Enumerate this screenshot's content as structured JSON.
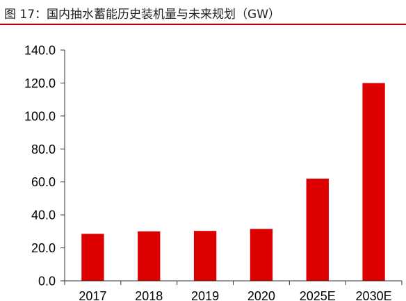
{
  "figure_title": "图 17：国内抽水蓄能历史装机量与未来规划（GW）",
  "accent_color": "#c00000",
  "bar_color": "#dd0000",
  "chart_data": {
    "type": "bar",
    "title": "",
    "xlabel": "",
    "ylabel": "",
    "categories": [
      "2017",
      "2018",
      "2019",
      "2020",
      "2025E",
      "2030E"
    ],
    "values": [
      28.5,
      30.0,
      30.3,
      31.5,
      62.0,
      120.0
    ],
    "ylim": [
      0,
      140
    ],
    "yticks": [
      0,
      20,
      40,
      60,
      80,
      100,
      120,
      140
    ],
    "ytick_labels": [
      "0.0",
      "20.0",
      "40.0",
      "60.0",
      "80.0",
      "100.0",
      "120.0",
      "140.0"
    ],
    "grid": false,
    "legend": "none"
  }
}
